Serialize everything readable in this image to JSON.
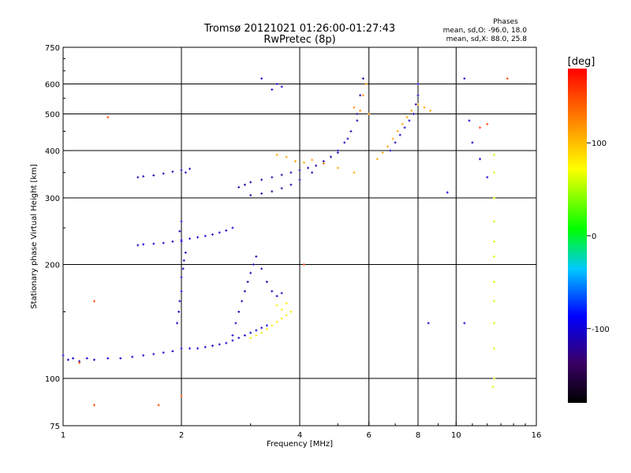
{
  "chart_data": {
    "type": "scatter",
    "title": "Tromsø 20121021 01:26:00-01:27:43",
    "subtitle": "RwPretec (8p)",
    "xlabel": "Frequency [MHz]",
    "ylabel": "Stationary phase Virtual Height [km]",
    "xscale": "log",
    "yscale": "log",
    "xlim": [
      1,
      16
    ],
    "ylim": [
      75,
      750
    ],
    "x_ticks": [
      1,
      2,
      4,
      6,
      8,
      10,
      16
    ],
    "y_ticks": [
      75,
      100,
      200,
      300,
      400,
      500,
      600,
      750
    ],
    "x_gridlines": [
      2,
      4,
      6,
      8,
      10
    ],
    "y_gridlines": [
      100,
      200,
      300,
      400,
      500,
      600
    ],
    "grid": true,
    "phase_info": {
      "title": "Phases",
      "line1": "mean, sd,O: -96.0, 18.0",
      "line2": "mean, sd,X:  88.0, 25.8"
    },
    "colorbar": {
      "label": "[deg]",
      "ticks": [
        100,
        0,
        -100
      ],
      "range": [
        -180,
        180
      ]
    },
    "series": [
      {
        "color_deg": -100,
        "points": [
          [
            1.0,
            115
          ],
          [
            1.03,
            112
          ],
          [
            1.06,
            113
          ],
          [
            1.1,
            111
          ],
          [
            1.15,
            113
          ],
          [
            1.2,
            112
          ],
          [
            1.3,
            113
          ],
          [
            1.4,
            113
          ],
          [
            1.5,
            114
          ],
          [
            1.6,
            115
          ],
          [
            1.7,
            116
          ],
          [
            1.8,
            117
          ],
          [
            1.9,
            118
          ],
          [
            2.0,
            120
          ],
          [
            2.1,
            120
          ],
          [
            2.2,
            120
          ],
          [
            2.3,
            121
          ],
          [
            2.4,
            122
          ],
          [
            2.5,
            123
          ],
          [
            2.6,
            124
          ],
          [
            2.7,
            126
          ],
          [
            2.8,
            128
          ],
          [
            2.9,
            130
          ],
          [
            3.0,
            132
          ],
          [
            3.1,
            134
          ],
          [
            3.2,
            136
          ],
          [
            3.3,
            138
          ]
        ]
      },
      {
        "color_deg": -100,
        "points": [
          [
            1.55,
            225
          ],
          [
            1.6,
            226
          ],
          [
            1.7,
            227
          ],
          [
            1.8,
            228
          ],
          [
            1.9,
            230
          ],
          [
            2.0,
            232
          ],
          [
            2.1,
            234
          ],
          [
            2.2,
            236
          ],
          [
            2.3,
            238
          ],
          [
            2.4,
            240
          ],
          [
            2.5,
            243
          ],
          [
            2.6,
            246
          ],
          [
            2.7,
            250
          ]
        ]
      },
      {
        "color_deg": -105,
        "points": [
          [
            1.95,
            140
          ],
          [
            1.97,
            150
          ],
          [
            1.98,
            160
          ],
          [
            2.0,
            170
          ],
          [
            2.0,
            185
          ],
          [
            2.02,
            195
          ],
          [
            2.03,
            205
          ],
          [
            2.05,
            215
          ],
          [
            2.0,
            230
          ],
          [
            1.98,
            245
          ],
          [
            2.0,
            260
          ]
        ]
      },
      {
        "color_deg": -110,
        "points": [
          [
            1.55,
            340
          ],
          [
            1.6,
            342
          ],
          [
            1.7,
            344
          ],
          [
            1.8,
            348
          ],
          [
            1.9,
            352
          ],
          [
            2.0,
            355
          ],
          [
            2.05,
            350
          ],
          [
            2.1,
            358
          ]
        ]
      },
      {
        "color_deg": -110,
        "points": [
          [
            2.7,
            130
          ],
          [
            2.75,
            140
          ],
          [
            2.8,
            150
          ],
          [
            2.85,
            160
          ],
          [
            2.9,
            170
          ],
          [
            2.95,
            180
          ],
          [
            3.0,
            190
          ],
          [
            3.05,
            200
          ],
          [
            3.1,
            210
          ],
          [
            3.2,
            195
          ],
          [
            3.3,
            180
          ],
          [
            3.4,
            170
          ],
          [
            3.5,
            165
          ],
          [
            3.6,
            168
          ]
        ]
      },
      {
        "color_deg": -115,
        "points": [
          [
            2.8,
            320
          ],
          [
            2.9,
            325
          ],
          [
            3.0,
            330
          ],
          [
            3.2,
            335
          ],
          [
            3.4,
            340
          ],
          [
            3.6,
            345
          ],
          [
            3.8,
            350
          ],
          [
            4.0,
            355
          ],
          [
            4.2,
            360
          ],
          [
            4.4,
            365
          ],
          [
            4.6,
            375
          ],
          [
            4.8,
            385
          ],
          [
            5.0,
            400
          ],
          [
            5.2,
            420
          ],
          [
            5.4,
            450
          ],
          [
            5.6,
            500
          ],
          [
            5.7,
            560
          ],
          [
            5.8,
            620
          ]
        ]
      },
      {
        "color_deg": -115,
        "points": [
          [
            3.0,
            305
          ],
          [
            3.2,
            308
          ],
          [
            3.4,
            312
          ],
          [
            3.6,
            318
          ],
          [
            3.8,
            325
          ],
          [
            4.0,
            335
          ],
          [
            4.3,
            350
          ],
          [
            4.6,
            370
          ],
          [
            5.0,
            395
          ],
          [
            5.3,
            430
          ],
          [
            5.6,
            480
          ]
        ]
      },
      {
        "color_deg": -110,
        "points": [
          [
            6.8,
            400
          ],
          [
            7.0,
            420
          ],
          [
            7.2,
            440
          ],
          [
            7.4,
            460
          ],
          [
            7.6,
            480
          ],
          [
            7.8,
            500
          ],
          [
            7.9,
            530
          ],
          [
            8.0,
            560
          ],
          [
            8.0,
            600
          ]
        ]
      },
      {
        "color_deg": 110,
        "points": [
          [
            6.3,
            380
          ],
          [
            6.5,
            395
          ],
          [
            6.7,
            410
          ],
          [
            6.9,
            430
          ],
          [
            7.1,
            450
          ],
          [
            7.3,
            470
          ],
          [
            7.5,
            490
          ],
          [
            7.7,
            510
          ],
          [
            8.0,
            530
          ],
          [
            8.3,
            520
          ],
          [
            8.6,
            510
          ]
        ]
      },
      {
        "color_deg": 80,
        "points": [
          [
            3.0,
            128
          ],
          [
            3.1,
            130
          ],
          [
            3.2,
            132
          ],
          [
            3.3,
            135
          ],
          [
            3.4,
            138
          ],
          [
            3.5,
            141
          ],
          [
            3.6,
            144
          ],
          [
            3.7,
            147
          ],
          [
            3.8,
            150
          ],
          [
            3.6,
            152
          ],
          [
            3.5,
            156
          ],
          [
            3.7,
            158
          ]
        ]
      },
      {
        "color_deg": 110,
        "points": [
          [
            3.5,
            390
          ],
          [
            3.7,
            385
          ],
          [
            3.9,
            375
          ],
          [
            4.1,
            372
          ],
          [
            4.3,
            378
          ],
          [
            4.6,
            370
          ],
          [
            5.0,
            360
          ],
          [
            5.5,
            350
          ]
        ]
      },
      {
        "color_deg": 120,
        "points": [
          [
            5.5,
            520
          ],
          [
            5.7,
            510
          ],
          [
            6.0,
            500
          ],
          [
            5.8,
            560
          ],
          [
            5.9,
            600
          ]
        ]
      },
      {
        "color_deg": 60,
        "points": [
          [
            12.5,
            390
          ],
          [
            12.5,
            350
          ],
          [
            12.5,
            300
          ],
          [
            12.5,
            260
          ],
          [
            12.5,
            230
          ],
          [
            12.5,
            210
          ],
          [
            12.5,
            180
          ],
          [
            12.5,
            160
          ],
          [
            12.5,
            140
          ],
          [
            12.5,
            120
          ],
          [
            12.5,
            100
          ],
          [
            12.4,
            95
          ]
        ]
      },
      {
        "color_deg": -100,
        "points": [
          [
            3.4,
            580
          ],
          [
            3.5,
            600
          ],
          [
            3.6,
            590
          ],
          [
            3.2,
            620
          ],
          [
            10.5,
            620
          ],
          [
            10.8,
            480
          ],
          [
            11.0,
            420
          ],
          [
            11.5,
            380
          ],
          [
            12.0,
            340
          ],
          [
            9.5,
            310
          ],
          [
            8.5,
            140
          ],
          [
            10.5,
            140
          ]
        ]
      },
      {
        "color_deg": 150,
        "points": [
          [
            1.3,
            490
          ],
          [
            1.2,
            160
          ],
          [
            1.1,
            110
          ],
          [
            1.2,
            85
          ],
          [
            1.75,
            85
          ],
          [
            2.0,
            90
          ],
          [
            4.1,
            200
          ],
          [
            11.5,
            460
          ],
          [
            12.0,
            470
          ],
          [
            13.5,
            620
          ]
        ]
      }
    ]
  }
}
